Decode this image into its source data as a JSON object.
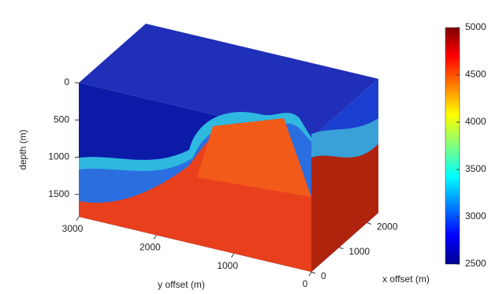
{
  "chart_data": {
    "type": "volume",
    "zlabel": "depth (m)",
    "ylabel": "y offset (m)",
    "xlabel": "x offset (m)",
    "zlim": [
      0,
      1800
    ],
    "zticks": [
      0,
      500,
      1000,
      1500
    ],
    "ylim": [
      0,
      3000
    ],
    "yticks": [
      3000,
      2000,
      1000,
      0
    ],
    "xlim": [
      0,
      2400
    ],
    "xticks": [
      0,
      1000,
      2000
    ],
    "clim": [
      2500,
      5000
    ],
    "cticks": [
      2500,
      3000,
      3500,
      4000,
      4500,
      5000
    ]
  }
}
